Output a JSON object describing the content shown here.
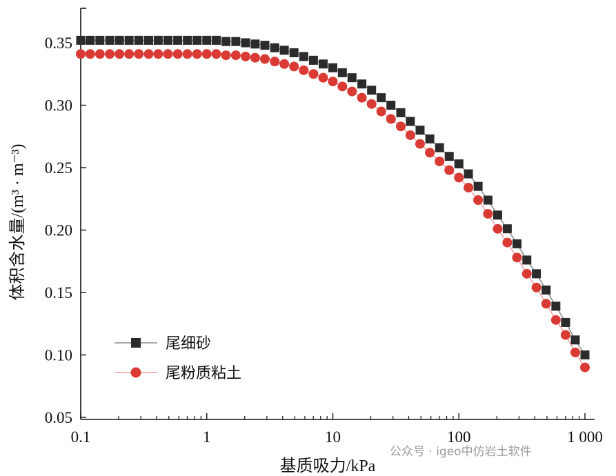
{
  "chart_data": {
    "type": "line",
    "title": "",
    "xlabel": "基质吸力/kPa",
    "ylabel": "体积含水量/(m³ · m⁻³)",
    "xscale": "log",
    "xlim": [
      0.1,
      1000
    ],
    "ylim": [
      0.05,
      0.36
    ],
    "x_ticks": [
      0.1,
      1,
      10,
      100,
      1000
    ],
    "x_tick_labels": [
      "0.1",
      "1",
      "10",
      "100",
      "1 000"
    ],
    "y_ticks": [
      0.05,
      0.1,
      0.15,
      0.2,
      0.25,
      0.3,
      0.35
    ],
    "y_tick_labels": [
      "0.05",
      "0.10",
      "0.15",
      "0.20",
      "0.25",
      "0.30",
      "0.35"
    ],
    "grid": false,
    "legend_position": "bottom-left",
    "x": [
      0.1,
      0.119,
      0.142,
      0.17,
      0.203,
      0.242,
      0.289,
      0.346,
      0.412,
      0.492,
      0.588,
      0.702,
      0.838,
      1,
      1.19,
      1.42,
      1.7,
      2.03,
      2.42,
      2.89,
      3.46,
      4.12,
      4.92,
      5.88,
      7.02,
      8.38,
      10,
      11.9,
      14.2,
      17.0,
      20.3,
      24.2,
      28.9,
      34.6,
      41.2,
      49.2,
      58.8,
      70.2,
      83.8,
      100,
      119,
      142,
      170,
      203,
      242,
      289,
      346,
      412,
      492,
      588,
      702,
      838,
      1000
    ],
    "series": [
      {
        "name": "尾细砂",
        "color": "#2b2b2b",
        "line_color": "#8a8a8a",
        "marker": "square",
        "values": [
          0.352,
          0.352,
          0.352,
          0.352,
          0.352,
          0.352,
          0.352,
          0.352,
          0.352,
          0.352,
          0.352,
          0.352,
          0.352,
          0.352,
          0.352,
          0.351,
          0.351,
          0.35,
          0.349,
          0.348,
          0.346,
          0.344,
          0.342,
          0.339,
          0.336,
          0.333,
          0.33,
          0.326,
          0.322,
          0.317,
          0.312,
          0.306,
          0.3,
          0.294,
          0.287,
          0.28,
          0.273,
          0.266,
          0.259,
          0.253,
          0.245,
          0.235,
          0.224,
          0.212,
          0.201,
          0.189,
          0.176,
          0.165,
          0.152,
          0.139,
          0.126,
          0.112,
          0.1
        ]
      },
      {
        "name": "尾粉质粘土",
        "color": "#d93a33",
        "line_color": "#f0a0a0",
        "marker": "circle",
        "values": [
          0.341,
          0.341,
          0.341,
          0.341,
          0.341,
          0.341,
          0.341,
          0.341,
          0.341,
          0.341,
          0.341,
          0.341,
          0.341,
          0.341,
          0.341,
          0.34,
          0.34,
          0.339,
          0.338,
          0.337,
          0.335,
          0.333,
          0.331,
          0.328,
          0.325,
          0.322,
          0.319,
          0.315,
          0.311,
          0.306,
          0.301,
          0.295,
          0.289,
          0.283,
          0.276,
          0.269,
          0.262,
          0.255,
          0.248,
          0.242,
          0.234,
          0.224,
          0.213,
          0.201,
          0.19,
          0.178,
          0.165,
          0.154,
          0.141,
          0.128,
          0.116,
          0.102,
          0.09
        ]
      }
    ]
  },
  "watermark": "公众号 · igeo中仿岩土软件"
}
